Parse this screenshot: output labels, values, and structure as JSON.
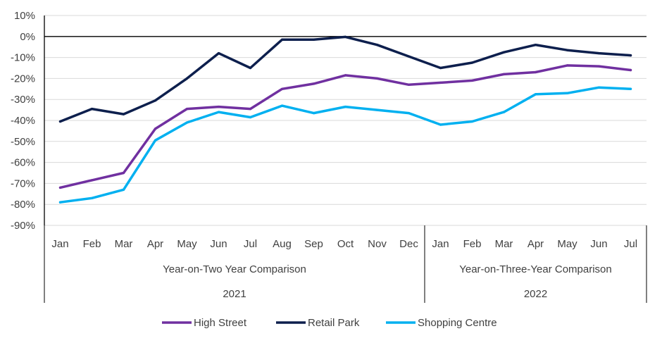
{
  "chart_data": {
    "type": "line",
    "categories": [
      "Jan",
      "Feb",
      "Mar",
      "Apr",
      "May",
      "Jun",
      "Jul",
      "Aug",
      "Sep",
      "Oct",
      "Nov",
      "Dec",
      "Jan",
      "Feb",
      "Mar",
      "Apr",
      "May",
      "Jun",
      "Jul"
    ],
    "groups": [
      {
        "comparison": "Year-on-Two Year Comparison",
        "year": "2021",
        "count": 12
      },
      {
        "comparison": "Year-on-Three-Year Comparison",
        "year": "2022",
        "count": 7
      }
    ],
    "series": [
      {
        "name": "High Street",
        "color": "#7030a0",
        "values": [
          -72,
          -68.5,
          -65,
          -44,
          -34.5,
          -33.5,
          -34.5,
          -25,
          -22.5,
          -18.5,
          -20,
          -23,
          -22,
          -21,
          -18,
          -17,
          -13.8,
          -14.2,
          -16
        ]
      },
      {
        "name": "Retail Park",
        "color": "#0d1f4d",
        "values": [
          -40.5,
          -34.5,
          -37,
          -30.5,
          -20,
          -8,
          -15,
          -1.5,
          -1.5,
          -0.2,
          -4,
          -9.5,
          -15,
          -12.5,
          -7.5,
          -4,
          -6.5,
          -8,
          -9
        ]
      },
      {
        "name": "Shopping Centre",
        "color": "#00b0f0",
        "values": [
          -79,
          -77,
          -73,
          -49.5,
          -41,
          -36,
          -38.5,
          -33,
          -36.5,
          -33.5,
          -35,
          -36.5,
          -42,
          -40.5,
          -36,
          -27.5,
          -27,
          -24.3,
          -25
        ]
      }
    ],
    "ylim": [
      -90,
      10
    ],
    "yticks": [
      10,
      0,
      -10,
      -20,
      -30,
      -40,
      -50,
      -60,
      -70,
      -80,
      -90
    ],
    "ytick_labels": [
      "10%",
      "0%",
      "-10%",
      "-20%",
      "-30%",
      "-40%",
      "-50%",
      "-60%",
      "-70%",
      "-80%",
      "-90%"
    ],
    "grid": true,
    "legend": "bottom"
  }
}
